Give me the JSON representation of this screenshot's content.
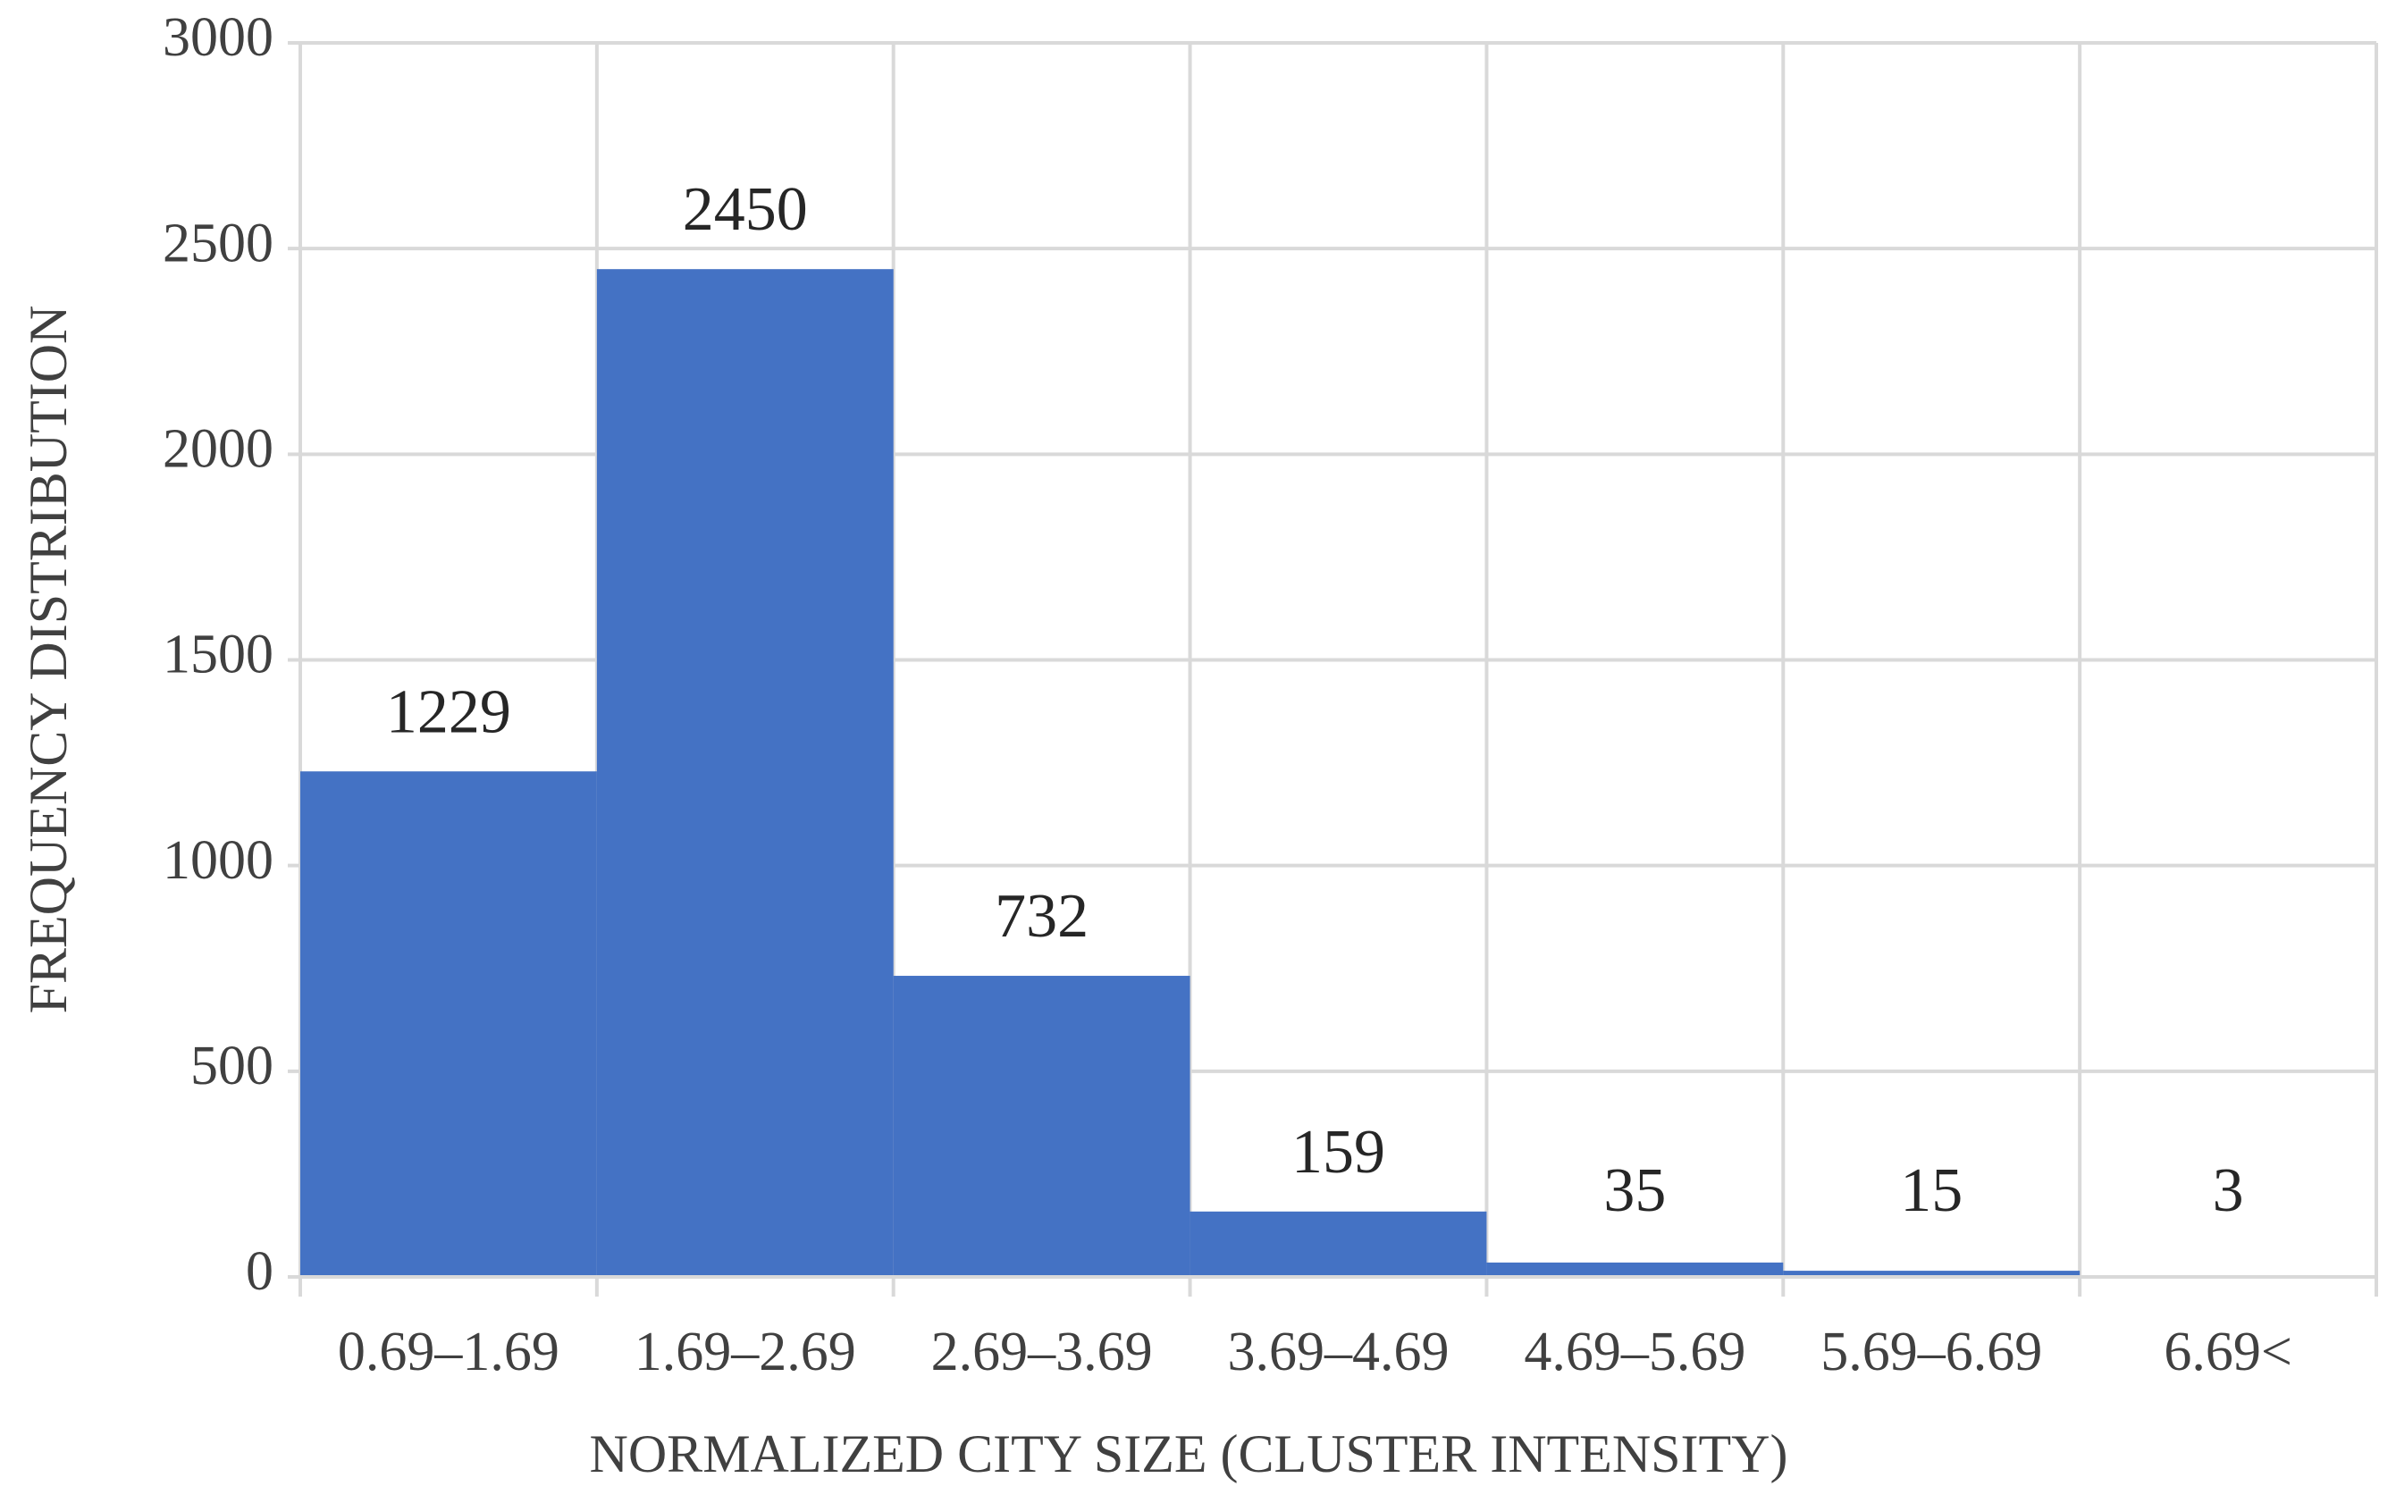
{
  "chart_data": {
    "type": "bar",
    "x_label": "NORMALIZED CITY SIZE (CLUSTER INTENSITY)",
    "y_label": "FREQUENCY DISTRIBUTION",
    "categories": [
      "0.69–1.69",
      "1.69–2.69",
      "2.69–3.69",
      "3.69–4.69",
      "4.69–5.69",
      "5.69–6.69",
      "6.69<"
    ],
    "values": [
      1229,
      2450,
      732,
      159,
      35,
      15,
      3
    ],
    "color": "#4472c4",
    "ylim": [
      0,
      3000
    ],
    "yticks": [
      0,
      500,
      1000,
      1500,
      2000,
      2500,
      3000
    ],
    "grid": true
  }
}
